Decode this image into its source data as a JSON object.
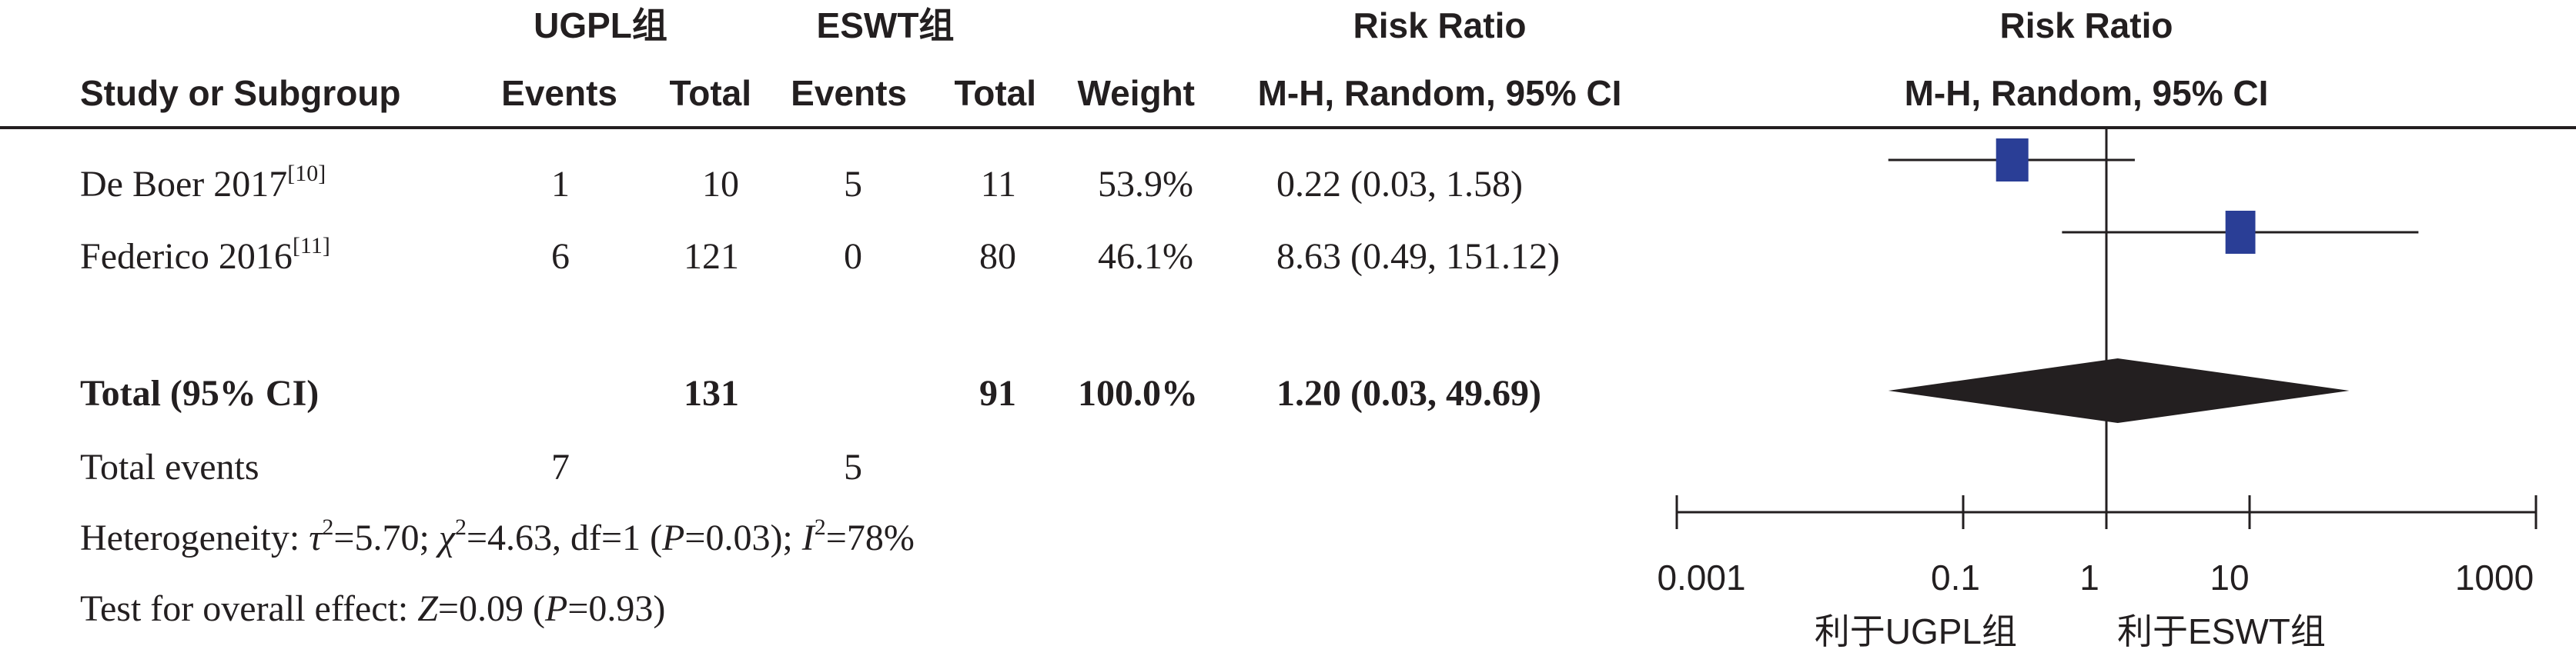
{
  "headers": {
    "group1": "UGPL组",
    "group2": "ESWT组",
    "rr_table": "Risk Ratio",
    "rr_plot": "Risk Ratio",
    "study": "Study or Subgroup",
    "events1": "Events",
    "total1": "Total",
    "events2": "Events",
    "total2": "Total",
    "weight": "Weight",
    "method_table": "M-H, Random, 95% CI",
    "method_plot": "M-H, Random, 95% CI"
  },
  "studies": [
    {
      "name": "De Boer 2017",
      "ref": "[10]",
      "events1": "1",
      "total1": "10",
      "events2": "5",
      "total2": "11",
      "weight": "53.9%",
      "ci_text": "0.22 (0.03, 1.58)"
    },
    {
      "name": "Federico 2016",
      "ref": "[11]",
      "events1": "6",
      "total1": "121",
      "events2": "0",
      "total2": "80",
      "weight": "46.1%",
      "ci_text": "8.63 (0.49, 151.12)"
    }
  ],
  "total": {
    "label": "Total (95% CI)",
    "total1": "131",
    "total2": "91",
    "weight": "100.0%",
    "ci_text": "1.20 (0.03, 49.69)"
  },
  "total_events": {
    "label": "Total events",
    "events1": "7",
    "events2": "5"
  },
  "heterogeneity": {
    "label": "Heterogeneity: ",
    "tau_sym": "τ",
    "tau_val": "=5.70; ",
    "chi_sym": "χ",
    "chi_val": "=4.63, df=1 (",
    "p_sym": "P",
    "p_val": "=0.03); ",
    "i_sym": "I",
    "i_val": "=78%",
    "sq": "2"
  },
  "overall_effect": {
    "label": "Test for overall effect: ",
    "z_sym": "Z",
    "z_val": "=0.09 (",
    "p_sym": "P",
    "p_val": "=0.93)"
  },
  "axis": {
    "ticks": [
      "0.001",
      "0.1",
      "1",
      "10",
      "1000"
    ],
    "favours_left": "利于UGPL组",
    "favours_right": "利于ESWT组"
  },
  "chart_data": {
    "type": "forest",
    "scale": "log",
    "xlim": [
      0.001,
      1000
    ],
    "null_line": 1,
    "marker_color": "#2a3e96",
    "diamond_color": "#231f20",
    "studies": [
      {
        "name": "De Boer 2017",
        "rr": 0.22,
        "lower": 0.03,
        "upper": 1.58,
        "weight": 53.9
      },
      {
        "name": "Federico 2016",
        "rr": 8.63,
        "lower": 0.49,
        "upper": 151.12,
        "weight": 46.1
      }
    ],
    "pooled": {
      "rr": 1.2,
      "lower": 0.03,
      "upper": 49.69
    }
  }
}
